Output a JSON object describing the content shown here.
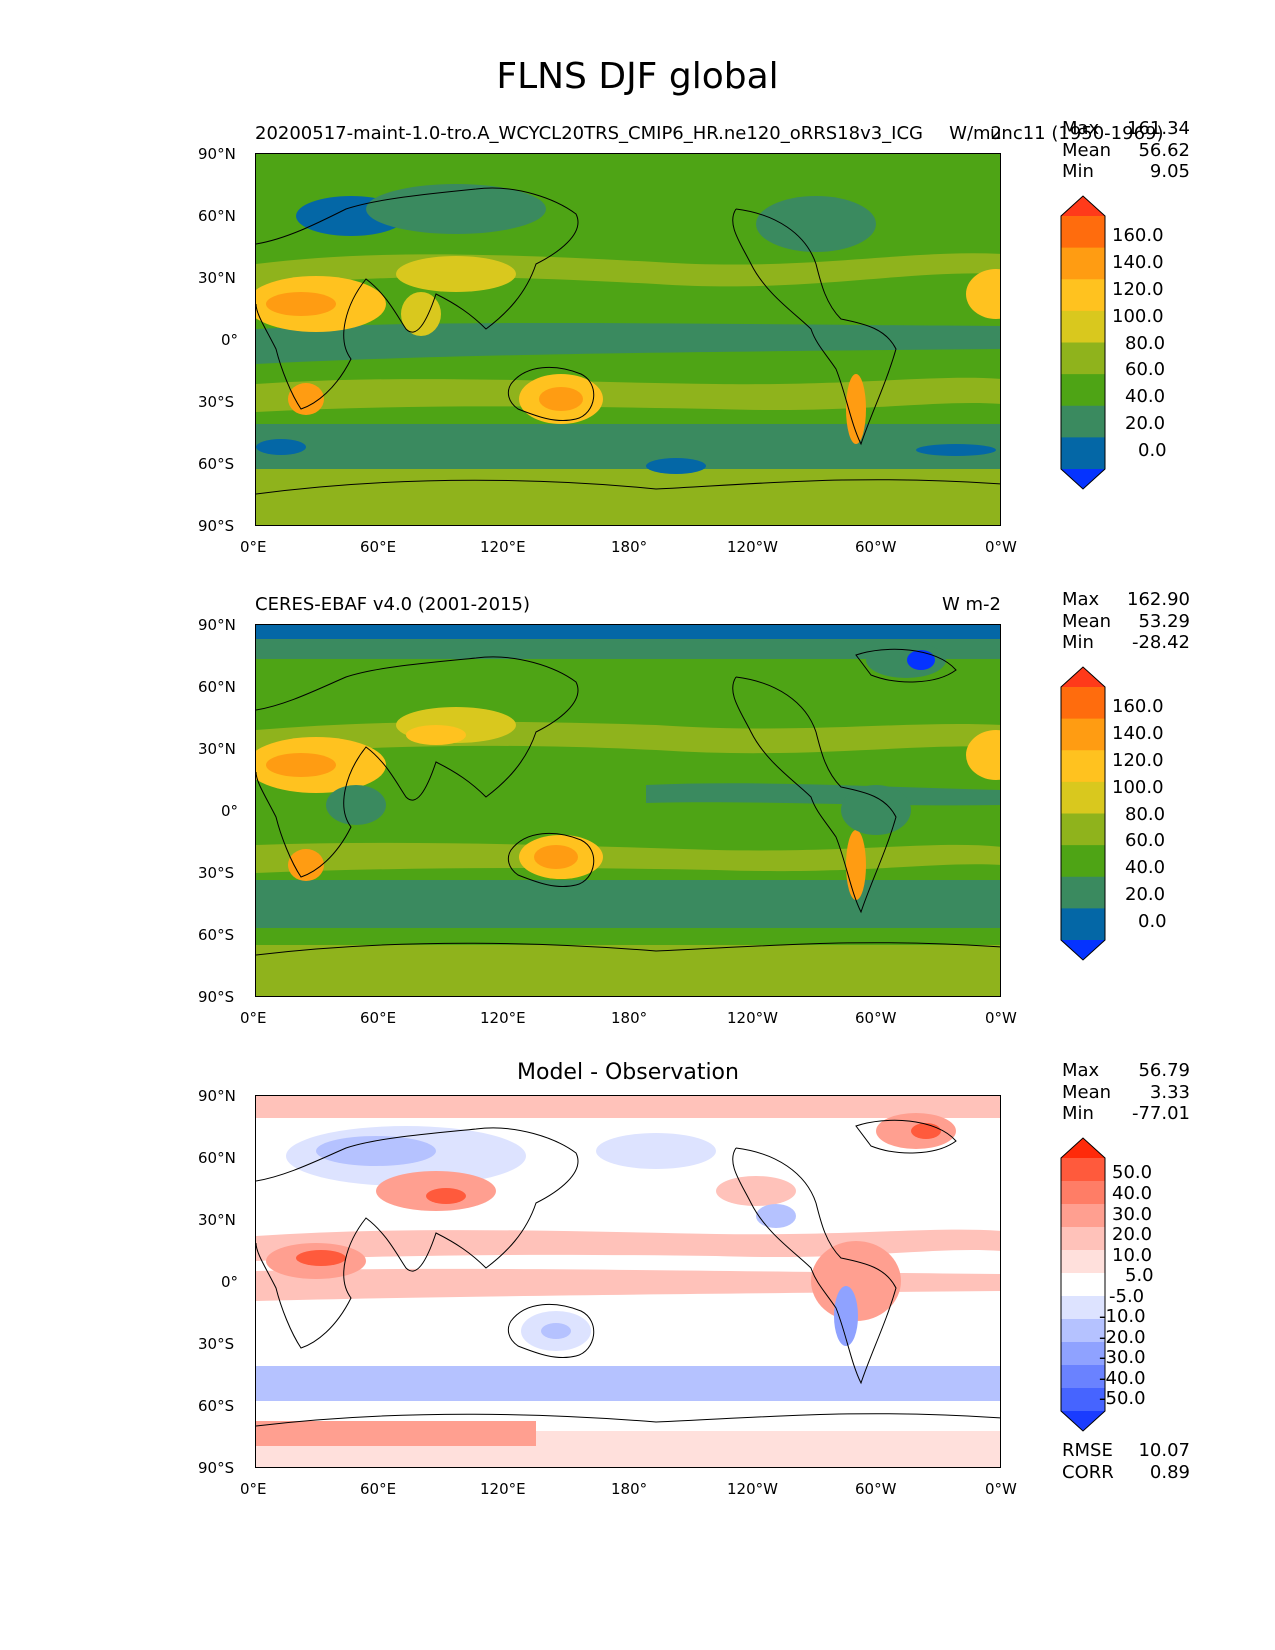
{
  "title": "FLNS DJF global",
  "panels": [
    {
      "id": "test",
      "left_title": "20200517-maint-1.0-tro.A_WCYCL20TRS_CMIP6_HR.ne120_oRRS18v3_ICG",
      "right_title": "W/m2",
      "right_title_extra": "unc11 (1950-1969)",
      "center_title": "",
      "stats": [
        {
          "label": "Max",
          "value": "161.34"
        },
        {
          "label": "Mean",
          "value": "56.62"
        },
        {
          "label": "Min",
          "value": "9.05"
        }
      ],
      "extra_stats": []
    },
    {
      "id": "reference",
      "left_title": "CERES-EBAF v4.0 (2001-2015)",
      "right_title": "W m-2",
      "right_title_extra": "",
      "center_title": "",
      "stats": [
        {
          "label": "Max",
          "value": "162.90"
        },
        {
          "label": "Mean",
          "value": "53.29"
        },
        {
          "label": "Min",
          "value": "-28.42"
        }
      ],
      "extra_stats": []
    },
    {
      "id": "diff",
      "left_title": "",
      "right_title": "",
      "right_title_extra": "",
      "center_title": "Model - Observation",
      "stats": [
        {
          "label": "Max",
          "value": "56.79"
        },
        {
          "label": "Mean",
          "value": "3.33"
        },
        {
          "label": "Min",
          "value": "-77.01"
        }
      ],
      "extra_stats": [
        {
          "label": "RMSE",
          "value": "10.07"
        },
        {
          "label": "CORR",
          "value": "0.89"
        }
      ]
    }
  ],
  "lat_ticks": [
    "90°N",
    "60°N",
    "30°N",
    "0°",
    "30°S",
    "60°S",
    "90°S"
  ],
  "lon_ticks": [
    "0°E",
    "60°E",
    "120°E",
    "180°",
    "120°W",
    "60°W",
    "0°W"
  ],
  "colorbar_field": {
    "labels": [
      "160.0",
      "140.0",
      "120.0",
      "100.0",
      "80.0",
      "60.0",
      "40.0",
      "20.0",
      "0.0"
    ],
    "colors": [
      "#ff3a1a",
      "#ff6c0d",
      "#ff9c12",
      "#ffc21f",
      "#d9c81e",
      "#8fb31c",
      "#4ea415",
      "#3a8a5f",
      "#0467a6",
      "#0533ff"
    ]
  },
  "colorbar_diff": {
    "labels": [
      "50.0",
      "40.0",
      "30.0",
      "20.0",
      "10.0",
      "5.0",
      "-5.0",
      "-10.0",
      "-20.0",
      "-30.0",
      "-40.0",
      "-50.0"
    ],
    "colors": [
      "#ff2a0a",
      "#ff5a3c",
      "#ff7d66",
      "#ff9f90",
      "#ffc2ba",
      "#ffe0dc",
      "#ffffff",
      "#dde3ff",
      "#b5c2ff",
      "#8fa2ff",
      "#6a82ff",
      "#4664ff",
      "#1a3cff"
    ]
  }
}
